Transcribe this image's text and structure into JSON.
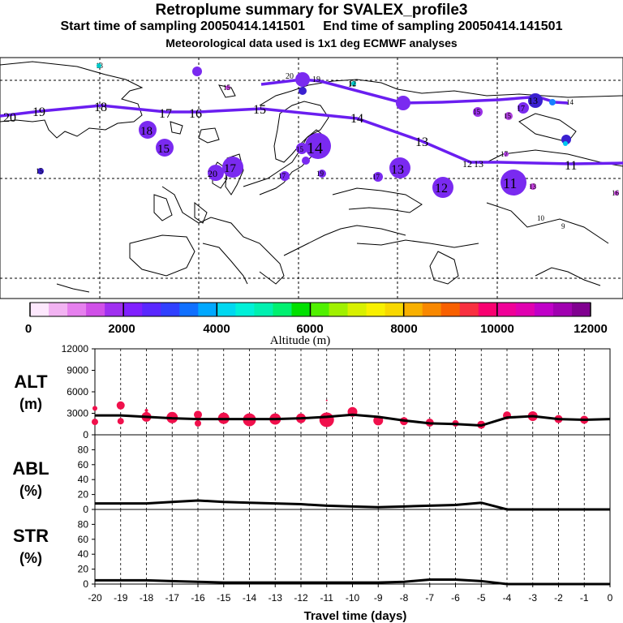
{
  "header": {
    "title": "Retroplume summary for SVALEX_profile3",
    "sampling": "Start time of sampling 20050414.141501     End time of sampling 20050414.141501",
    "met": "Meteorological data used is 1x1 deg ECMWF analyses"
  },
  "colors": {
    "track": "#6a1ef0",
    "track_top": "#2a20ff",
    "alt_marker": "#f0104c",
    "line": "#000000"
  },
  "chart_data": [
    {
      "type": "map",
      "name": "retroplume-map",
      "track_labels_upper": [
        "20",
        "19",
        "18",
        "17",
        "16",
        "15",
        "14",
        "13",
        "12",
        "11"
      ],
      "track_labels_lower": [
        "20",
        "19",
        "18",
        "17",
        "16",
        "15",
        "14",
        "13",
        "12",
        "11",
        "10",
        "9"
      ],
      "colorbar": {
        "xlabel": "Altitude (m)",
        "tick_labels": [
          "0",
          "2000",
          "4000",
          "6000",
          "8000",
          "10000",
          "12000"
        ],
        "colors": [
          "#fde8fd",
          "#f2b3f2",
          "#e680ee",
          "#d050e8",
          "#a030f0",
          "#8020ff",
          "#5a28ff",
          "#3040ff",
          "#1070ff",
          "#00a8ff",
          "#00d8f0",
          "#00f0d8",
          "#00f0b0",
          "#00f070",
          "#00e000",
          "#50f000",
          "#a0f000",
          "#d8f000",
          "#f8f000",
          "#f8d800",
          "#f8b000",
          "#f88800",
          "#f86000",
          "#f83040",
          "#f80070",
          "#f00098",
          "#e000b0",
          "#c000c8",
          "#a000b0",
          "#800090"
        ]
      }
    },
    {
      "type": "scatter+line",
      "name": "ALT",
      "ylabel": "ALT\n(m)",
      "ylim": [
        0,
        12000
      ],
      "yticks": [
        "0",
        "3000",
        "6000",
        "9000",
        "12000"
      ],
      "line_x": [
        -20,
        -19,
        -18,
        -17,
        -16,
        -15,
        -14,
        -13,
        -12,
        -11,
        -10,
        -9,
        -8,
        -7,
        -6,
        -5,
        -4,
        -3,
        -2,
        -1,
        0
      ],
      "line_y": [
        2700,
        2700,
        2500,
        2300,
        2200,
        2200,
        2200,
        2200,
        2300,
        2500,
        2800,
        2500,
        2000,
        1600,
        1500,
        1300,
        2400,
        2600,
        2200,
        2100,
        2200
      ],
      "markers": [
        {
          "x": -20,
          "y": 3700,
          "r": 3
        },
        {
          "x": -20,
          "y": 1800,
          "r": 4
        },
        {
          "x": -19,
          "y": 4100,
          "r": 5
        },
        {
          "x": -19,
          "y": 1900,
          "r": 4
        },
        {
          "x": -18,
          "y": 2500,
          "r": 6
        },
        {
          "x": -18,
          "y": 3400,
          "r": 2
        },
        {
          "x": -17,
          "y": 2400,
          "r": 7
        },
        {
          "x": -16,
          "y": 1600,
          "r": 4
        },
        {
          "x": -16,
          "y": 2800,
          "r": 5
        },
        {
          "x": -15,
          "y": 2300,
          "r": 7
        },
        {
          "x": -14,
          "y": 2100,
          "r": 8
        },
        {
          "x": -13,
          "y": 2200,
          "r": 7
        },
        {
          "x": -12,
          "y": 2300,
          "r": 6
        },
        {
          "x": -11,
          "y": 2100,
          "r": 9
        },
        {
          "x": -11,
          "y": 4800,
          "r": 1
        },
        {
          "x": -10,
          "y": 3200,
          "r": 6
        },
        {
          "x": -9,
          "y": 2000,
          "r": 6
        },
        {
          "x": -8,
          "y": 1900,
          "r": 5
        },
        {
          "x": -7,
          "y": 1700,
          "r": 5
        },
        {
          "x": -6,
          "y": 1600,
          "r": 4
        },
        {
          "x": -5,
          "y": 1400,
          "r": 5
        },
        {
          "x": -4,
          "y": 2700,
          "r": 5
        },
        {
          "x": -3,
          "y": 2600,
          "r": 6
        },
        {
          "x": -2,
          "y": 2200,
          "r": 5
        },
        {
          "x": -1,
          "y": 2100,
          "r": 5
        }
      ]
    },
    {
      "type": "line",
      "name": "ABL",
      "ylabel": "ABL\n(%)",
      "ylim": [
        0,
        100
      ],
      "yticks": [
        "0",
        "20",
        "40",
        "60",
        "80"
      ],
      "x": [
        -20,
        -19,
        -18,
        -17,
        -16,
        -15,
        -14,
        -13,
        -12,
        -11,
        -10,
        -9,
        -8,
        -7,
        -6,
        -5,
        -4,
        -3,
        -2,
        -1,
        0
      ],
      "y": [
        8,
        8,
        8,
        10,
        12,
        10,
        9,
        8,
        7,
        5,
        4,
        3,
        4,
        5,
        6,
        9,
        0,
        0,
        0,
        0,
        0
      ]
    },
    {
      "type": "line",
      "name": "STR",
      "ylabel": "STR\n(%)",
      "ylim": [
        0,
        100
      ],
      "yticks": [
        "0",
        "20",
        "40",
        "60",
        "80"
      ],
      "x": [
        -20,
        -19,
        -18,
        -17,
        -16,
        -15,
        -14,
        -13,
        -12,
        -11,
        -10,
        -9,
        -8,
        -7,
        -6,
        -5,
        -4,
        -3,
        -2,
        -1,
        0
      ],
      "y": [
        5,
        5,
        5,
        4,
        3,
        2,
        2,
        2,
        2,
        2,
        2,
        2,
        3,
        6,
        6,
        4,
        0,
        0,
        0,
        0,
        0
      ],
      "xlabel": "Travel time (days)",
      "xticks": [
        "-20",
        "-19",
        "-18",
        "-17",
        "-16",
        "-15",
        "-14",
        "-13",
        "-12",
        "-11",
        "-10",
        "-9",
        "-8",
        "-7",
        "-6",
        "-5",
        "-4",
        "-3",
        "-2",
        "-1",
        "0"
      ]
    }
  ]
}
